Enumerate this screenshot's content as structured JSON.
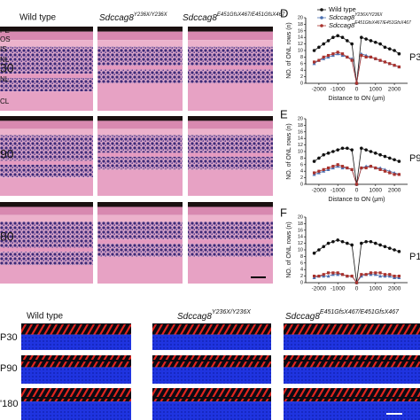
{
  "top_panel": {
    "headers": [
      {
        "text": "Wild type"
      },
      {
        "text": "Sdccag8",
        "sup": "Y236X/Y236X"
      },
      {
        "text": "Sdccag8",
        "sup": "E451GfsX467/E451GfsX467"
      }
    ],
    "layer_labels": [
      "PE",
      "OS",
      "IS",
      "NL",
      "NL",
      "CL"
    ],
    "row_labels": [
      "30",
      "90",
      "80"
    ]
  },
  "bottom_panel": {
    "headers": [
      {
        "text": "Wild type"
      },
      {
        "text": "Sdccag8",
        "sup": "Y236X/Y236X"
      },
      {
        "text": "Sdccag8",
        "sup": "E451GfsX467/E451GfsX467"
      }
    ],
    "row_labels": [
      "P30",
      "P90",
      "'180"
    ]
  },
  "chart_data": [
    {
      "type": "line",
      "panel": "D",
      "stage": "P3",
      "ylabel": "NO. of ONL rows (n)",
      "xlabel": "Distance to ON (μm)",
      "x": [
        -2250,
        -2000,
        -1750,
        -1500,
        -1250,
        -1000,
        -750,
        -500,
        -250,
        0,
        250,
        500,
        750,
        1000,
        1250,
        1500,
        1750,
        2000,
        2250
      ],
      "xlim": [
        -2700,
        2700
      ],
      "xticks": [
        -2000,
        -1000,
        0,
        1000,
        2000
      ],
      "ylim": [
        0,
        20
      ],
      "yticks": [
        0,
        2,
        4,
        6,
        8,
        10,
        12,
        14,
        16,
        18,
        20
      ],
      "legend": "top-right",
      "series": [
        {
          "name": "Wild type",
          "color": "#111111",
          "values": [
            10,
            11,
            12,
            13,
            14,
            14.5,
            14,
            13,
            12,
            0,
            14,
            13.5,
            13,
            12.5,
            12,
            11,
            10.5,
            10,
            9
          ]
        },
        {
          "name": "Sdccag8",
          "name_sup": "Y236X/Y236X",
          "color": "#4a6fb0",
          "values": [
            6,
            7,
            7.5,
            8,
            8.5,
            9,
            8.5,
            8,
            7.5,
            0,
            9,
            8.5,
            8,
            7.5,
            7,
            6.5,
            6,
            5.5,
            5
          ]
        },
        {
          "name": "Sdccag8",
          "name_sup": "E451GfsX467/E451GfsX467",
          "color": "#a8322d",
          "values": [
            6.5,
            7,
            8,
            8.5,
            9,
            9.5,
            9,
            8,
            7,
            0,
            8.5,
            8,
            8,
            7.5,
            7,
            6.5,
            6,
            5.5,
            5
          ]
        }
      ]
    },
    {
      "type": "line",
      "panel": "E",
      "stage": "P9",
      "ylabel": "NO. of ONL rows (n)",
      "xlabel": "Distance to ON (μm)",
      "x": [
        -2250,
        -2000,
        -1750,
        -1500,
        -1250,
        -1000,
        -750,
        -500,
        -250,
        0,
        250,
        500,
        750,
        1000,
        1250,
        1500,
        1750,
        2000,
        2250
      ],
      "xlim": [
        -2700,
        2700
      ],
      "xticks": [
        -2000,
        -1000,
        0,
        1000,
        2000
      ],
      "ylim": [
        0,
        20
      ],
      "yticks": [
        0,
        2,
        4,
        6,
        8,
        10,
        12,
        14,
        16,
        18,
        20
      ],
      "series": [
        {
          "color": "#111111",
          "values": [
            7,
            8,
            9,
            9.5,
            10,
            10.5,
            11,
            11,
            10.5,
            0,
            11,
            10.5,
            10,
            9.5,
            9,
            8.5,
            8,
            7.5,
            7
          ]
        },
        {
          "color": "#4a6fb0",
          "values": [
            3,
            3.5,
            4,
            4.5,
            5,
            5.5,
            5,
            5,
            4.5,
            0,
            5,
            5.5,
            5.5,
            5,
            5,
            4.5,
            4,
            3.5,
            3
          ]
        },
        {
          "color": "#a8322d",
          "values": [
            3.5,
            4,
            4.5,
            5,
            5.5,
            6,
            5.5,
            5,
            4.5,
            0,
            5,
            5,
            5.5,
            5,
            4.5,
            4,
            3.5,
            3,
            3
          ]
        }
      ]
    },
    {
      "type": "line",
      "panel": "F",
      "stage": "P1",
      "ylabel": "NO. of ONL rows (n)",
      "x": [
        -2250,
        -2000,
        -1750,
        -1500,
        -1250,
        -1000,
        -750,
        -500,
        -250,
        0,
        250,
        500,
        750,
        1000,
        1250,
        1500,
        1750,
        2000,
        2250
      ],
      "xlim": [
        -2700,
        2700
      ],
      "xticks": [
        -2000,
        -1000,
        0,
        1000,
        2000
      ],
      "ylim": [
        0,
        20
      ],
      "yticks": [
        0,
        2,
        4,
        6,
        8,
        10,
        12,
        14,
        16,
        18,
        20
      ],
      "series": [
        {
          "color": "#111111",
          "values": [
            9,
            10,
            11,
            12,
            12.5,
            13,
            12.5,
            12,
            11.5,
            0,
            12,
            12.5,
            12.5,
            12,
            11.5,
            11,
            10.5,
            10,
            9.5
          ]
        },
        {
          "color": "#4a6fb0",
          "values": [
            1.5,
            2,
            2,
            2,
            2.5,
            2.5,
            2.5,
            2,
            2,
            0,
            2,
            2.5,
            2.5,
            2.5,
            2,
            2,
            2,
            1.5,
            1.5
          ]
        },
        {
          "color": "#a8322d",
          "values": [
            2,
            2,
            2.5,
            3,
            3,
            3,
            2.5,
            2,
            2,
            0,
            2.5,
            2.5,
            3,
            3,
            3,
            2.5,
            2.5,
            2,
            2
          ]
        }
      ]
    }
  ]
}
